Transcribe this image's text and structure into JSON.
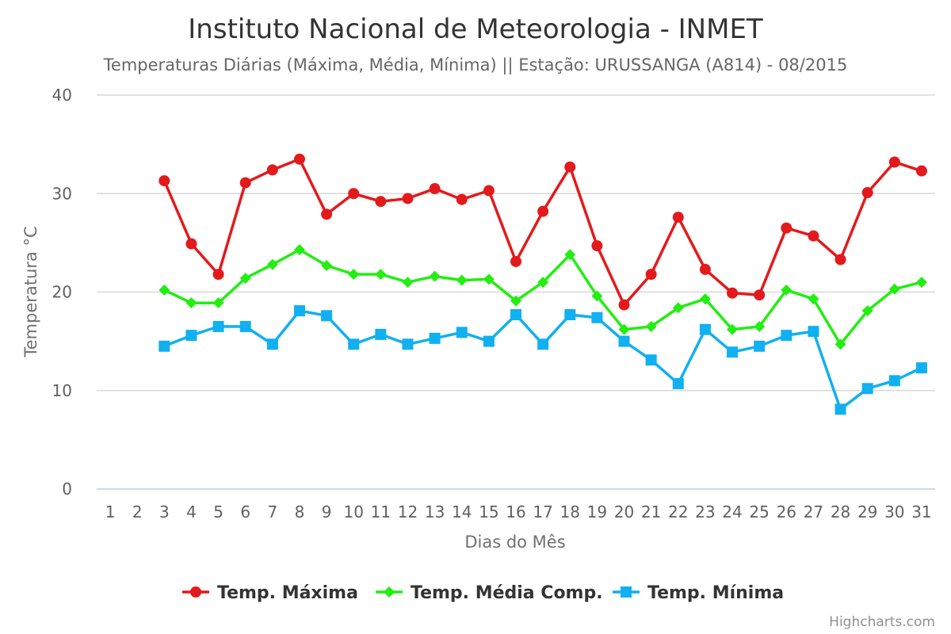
{
  "chart_data": {
    "type": "line",
    "title": "Instituto Nacional de Meteorologia - INMET",
    "subtitle": "Temperaturas Diárias (Máxima, Média, Mínima) || Estação: URUSSANGA (A814) - 08/2015",
    "xlabel": "Dias do Mês",
    "ylabel": "Temperatura °C",
    "categories": [
      "1",
      "2",
      "3",
      "4",
      "5",
      "6",
      "7",
      "8",
      "9",
      "10",
      "11",
      "12",
      "13",
      "14",
      "15",
      "16",
      "17",
      "18",
      "19",
      "20",
      "21",
      "22",
      "23",
      "24",
      "25",
      "26",
      "27",
      "28",
      "29",
      "30",
      "31"
    ],
    "y_ticks": [
      "0",
      "10",
      "20",
      "30",
      "40"
    ],
    "ylim": [
      0,
      40
    ],
    "grid": true,
    "legend_position": "bottom",
    "series": [
      {
        "name": "Temp. Máxima",
        "color": "#e31a1c",
        "marker": "circle",
        "values": [
          null,
          null,
          31.3,
          24.9,
          21.8,
          31.1,
          32.4,
          33.5,
          27.9,
          30.0,
          29.2,
          29.5,
          30.5,
          29.4,
          30.3,
          23.1,
          28.2,
          32.7,
          24.7,
          18.7,
          21.8,
          27.6,
          22.3,
          19.9,
          19.7,
          26.5,
          25.7,
          23.3,
          30.1,
          33.2,
          32.3
        ]
      },
      {
        "name": "Temp. Média Comp.",
        "color": "#22ee11",
        "marker": "diamond",
        "values": [
          null,
          null,
          20.2,
          18.9,
          18.9,
          21.4,
          22.8,
          24.3,
          22.7,
          21.8,
          21.8,
          21.0,
          21.6,
          21.2,
          21.3,
          19.1,
          21.0,
          23.8,
          19.6,
          16.2,
          16.5,
          18.4,
          19.3,
          16.2,
          16.5,
          20.2,
          19.3,
          14.7,
          18.1,
          20.3,
          21.0
        ]
      },
      {
        "name": "Temp. Mínima",
        "color": "#11b0f0",
        "marker": "square",
        "values": [
          null,
          null,
          14.5,
          15.6,
          16.5,
          16.5,
          14.7,
          18.1,
          17.6,
          14.7,
          15.7,
          14.7,
          15.3,
          15.9,
          15.0,
          17.7,
          14.7,
          17.7,
          17.4,
          15.0,
          13.1,
          10.7,
          16.2,
          13.9,
          14.5,
          15.6,
          16.0,
          8.1,
          10.2,
          11.0,
          12.3
        ]
      }
    ]
  },
  "credits": "Highcharts.com"
}
